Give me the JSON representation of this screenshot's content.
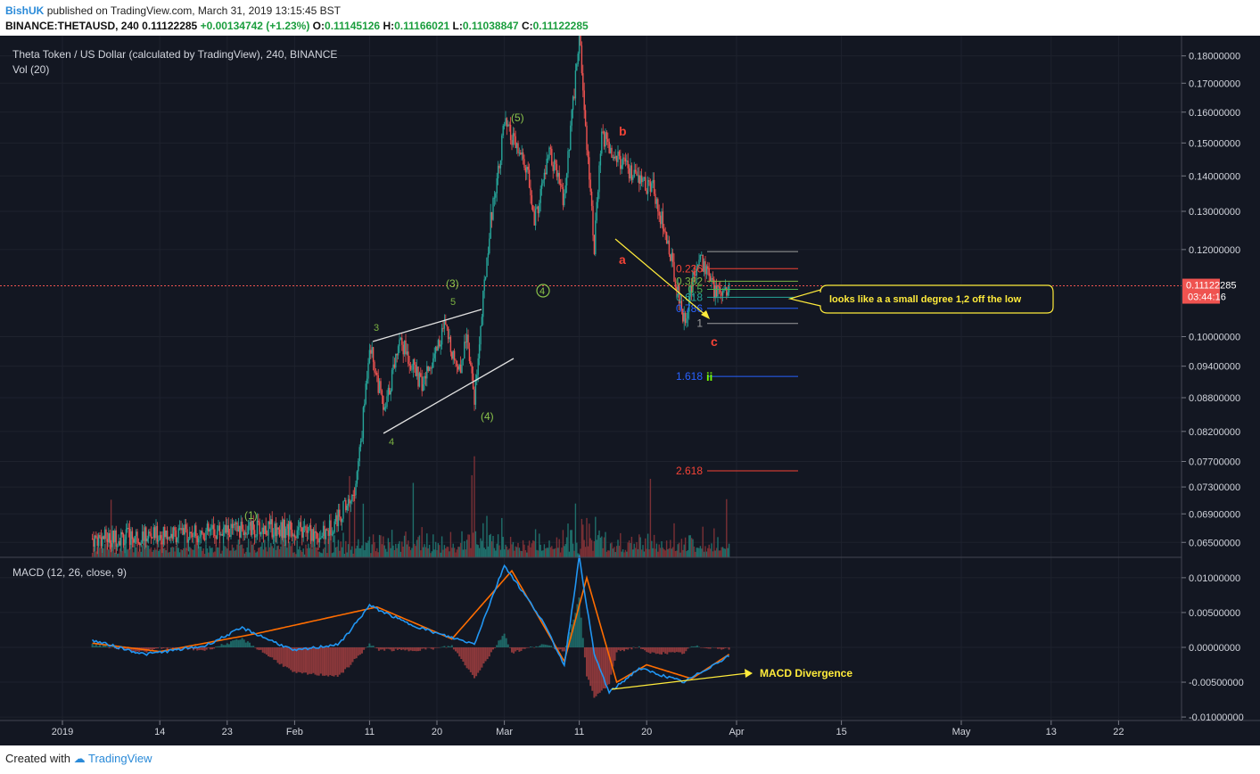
{
  "header": {
    "author": "BishUK",
    "published_text": "published on TradingView.com, March 31, 2019 13:15:45 BST",
    "symbol_line": "BINANCE:THETAUSD, 240",
    "last_price": "0.11122285",
    "change": "+0.00134742 (+1.23%)",
    "open_label": "O:",
    "open": "0.11145126",
    "high_label": "H:",
    "high": "0.11166021",
    "low_label": "L:",
    "low": "0.11038847",
    "close_label": "C:",
    "close": "0.11122285"
  },
  "legend": {
    "title": "Theta Token / US Dollar (calculated by TradingView), 240, BINANCE",
    "volume": "Vol (20)",
    "macd": "MACD (12, 26, close, 9)"
  },
  "price_badge": {
    "price": "0.11122285",
    "countdown": "03:44:16"
  },
  "annotations": {
    "callout": "looks like a a small degree 1,2 off the low",
    "macd_divergence": "MACD Divergence",
    "waves": {
      "w1": "(1)",
      "w3": "(3)",
      "w4": "(4)",
      "w5": "(5)",
      "w4c": "4",
      "small3": "3",
      "small4": "4",
      "small5": "5",
      "a": "a",
      "b": "b",
      "c": "c",
      "ii": "ii"
    },
    "fib": {
      "f236": "0.236",
      "f382": "0.382",
      "f5": "0.5",
      "f618": "0.618",
      "f786": "0.786",
      "f1": "1",
      "f1618": "1.618",
      "f2618": "2.618"
    }
  },
  "colors": {
    "background": "#131722",
    "up": "#26a69a",
    "down": "#ef5350",
    "macd": "#2196f3",
    "signal": "#ff6d00",
    "annotation": "#ffeb3b",
    "wave_green": "#7cb342",
    "wave_red": "#f44336"
  },
  "footer": {
    "created_with": "Created with",
    "brand": "TradingView"
  },
  "chart_data": {
    "type": "candlestick",
    "title": "Theta Token / US Dollar (calculated by TradingView), 240, BINANCE",
    "timeframe": "240",
    "price_axis": {
      "ticks": [
        "0.18000000",
        "0.17000000",
        "0.16000000",
        "0.15000000",
        "0.14000000",
        "0.13000000",
        "0.12000000",
        "0.10000000",
        "0.09400000",
        "0.08800000",
        "0.08200000",
        "0.07700000",
        "0.07300000",
        "0.06900000",
        "0.06500000"
      ],
      "range": [
        0.063,
        0.185
      ],
      "scale": "log"
    },
    "macd_axis": {
      "ticks": [
        "0.01000000",
        "0.00500000",
        "0.00000000",
        "-0.00500000",
        "-0.01000000"
      ],
      "range": [
        -0.0105,
        0.0128
      ]
    },
    "time_axis": {
      "ticks": [
        "2019",
        "14",
        "23",
        "Feb",
        "11",
        "20",
        "Mar",
        "11",
        "20",
        "Apr",
        "15",
        "May",
        "13",
        "22"
      ]
    },
    "price_path": [
      [
        "2019-01-05",
        0.0655
      ],
      [
        "2019-01-22",
        0.0665
      ],
      [
        "2019-01-30",
        0.067
      ],
      [
        "2019-02-05",
        0.066
      ],
      [
        "2019-02-09",
        0.072
      ],
      [
        "2019-02-10",
        0.082
      ],
      [
        "2019-02-11",
        0.099
      ],
      [
        "2019-02-13",
        0.085
      ],
      [
        "2019-02-15",
        0.1
      ],
      [
        "2019-02-18",
        0.09
      ],
      [
        "2019-02-21",
        0.102
      ],
      [
        "2019-02-23",
        0.093
      ],
      [
        "2019-02-24",
        0.101
      ],
      [
        "2019-02-25",
        0.088
      ],
      [
        "2019-02-27",
        0.125
      ],
      [
        "2019-03-01",
        0.156
      ],
      [
        "2019-03-04",
        0.142
      ],
      [
        "2019-03-05",
        0.127
      ],
      [
        "2019-03-07",
        0.147
      ],
      [
        "2019-03-09",
        0.133
      ],
      [
        "2019-03-11",
        0.188
      ],
      [
        "2019-03-13",
        0.121
      ],
      [
        "2019-03-14",
        0.152
      ],
      [
        "2019-03-18",
        0.14
      ],
      [
        "2019-03-21",
        0.136
      ],
      [
        "2019-03-23",
        0.12
      ],
      [
        "2019-03-25",
        0.1035
      ],
      [
        "2019-03-27",
        0.119
      ],
      [
        "2019-03-29",
        0.11
      ],
      [
        "2019-03-31",
        0.1112
      ]
    ],
    "last_price": 0.11122285,
    "fib_levels": [
      {
        "ratio": "0.236",
        "price": 0.1153
      },
      {
        "ratio": "0.382",
        "price": 0.1123
      },
      {
        "ratio": "0.5",
        "price": 0.1104
      },
      {
        "ratio": "0.618",
        "price": 0.1086
      },
      {
        "ratio": "0.786",
        "price": 0.1061
      },
      {
        "ratio": "1",
        "price": 0.1028
      },
      {
        "ratio": "1.618",
        "price": 0.092
      },
      {
        "ratio": "2.618",
        "price": 0.0755
      }
    ],
    "macd_series": [
      {
        "label": "macd",
        "points": [
          [
            "2019-01-05",
            0.001
          ],
          [
            "2019-01-12",
            -0.001
          ],
          [
            "2019-01-20",
            0.0002
          ],
          [
            "2019-01-25",
            0.0028
          ],
          [
            "2019-02-01",
            -0.0005
          ],
          [
            "2019-02-07",
            0.0005
          ],
          [
            "2019-02-11",
            0.006
          ],
          [
            "2019-02-16",
            0.0035
          ],
          [
            "2019-02-20",
            0.002
          ],
          [
            "2019-02-25",
            0.0005
          ],
          [
            "2019-03-01",
            0.0118
          ],
          [
            "2019-03-06",
            0.004
          ],
          [
            "2019-03-09",
            -0.0025
          ],
          [
            "2019-03-11",
            0.013
          ],
          [
            "2019-03-13",
            -0.001
          ],
          [
            "2019-03-15",
            -0.0065
          ],
          [
            "2019-03-19",
            -0.003
          ],
          [
            "2019-03-25",
            -0.005
          ],
          [
            "2019-03-31",
            -0.0012
          ]
        ]
      },
      {
        "label": "signal",
        "points": [
          [
            "2019-01-05",
            0.0006
          ],
          [
            "2019-01-14",
            -0.0006
          ],
          [
            "2019-01-27",
            0.002
          ],
          [
            "2019-02-12",
            0.0058
          ],
          [
            "2019-02-22",
            0.0012
          ],
          [
            "2019-03-02",
            0.011
          ],
          [
            "2019-03-09",
            -0.002
          ],
          [
            "2019-03-12",
            0.01
          ],
          [
            "2019-03-16",
            -0.005
          ],
          [
            "2019-03-20",
            -0.0025
          ],
          [
            "2019-03-26",
            -0.0045
          ],
          [
            "2019-03-31",
            -0.001
          ]
        ]
      }
    ]
  }
}
